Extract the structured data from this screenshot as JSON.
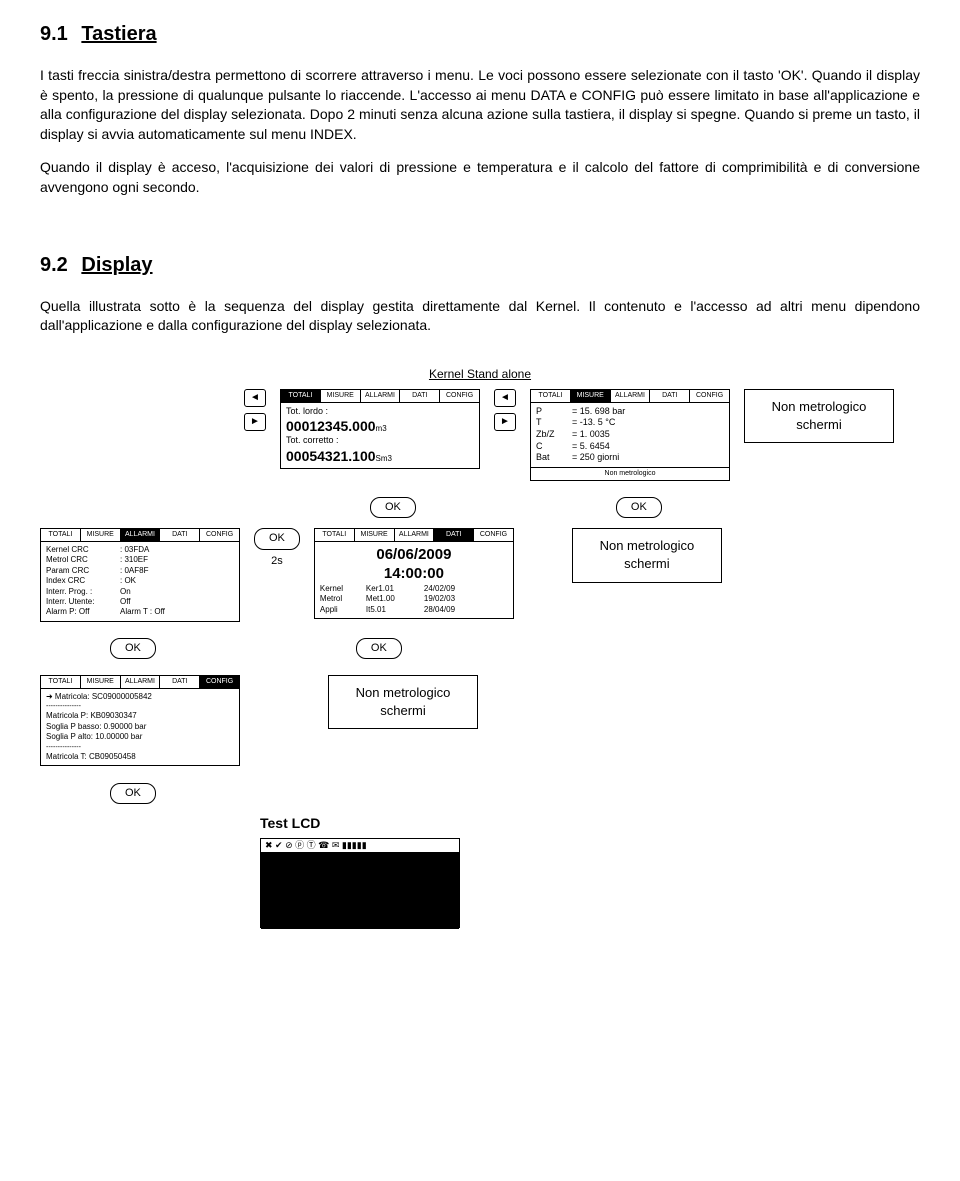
{
  "section1": {
    "num": "9.1",
    "title": "Tastiera",
    "p1": "I tasti freccia sinistra/destra permettono di scorrere attraverso i menu. Le voci possono essere selezionate con il tasto 'OK'. Quando il display è spento, la pressione di qualunque pulsante lo riaccende. L'accesso ai menu DATA e CONFIG può essere limitato in base all'applicazione e alla configurazione del display selezionata. Dopo 2 minuti senza alcuna azione sulla tastiera, il display si spegne. Quando si preme un tasto, il display si avvia automaticamente sul menu INDEX.",
    "p2": "Quando il display è acceso, l'acquisizione dei valori di pressione e temperatura e il calcolo del fattore di comprimibilità e di conversione avvengono ogni secondo."
  },
  "section2": {
    "num": "9.2",
    "title": "Display",
    "p1": "Quella illustrata sotto è la sequenza del display gestita direttamente dal Kernel. Il contenuto e l'accesso ad altri menu dipendono dall'applicazione e dalla configurazione del display selezionata."
  },
  "diagram": {
    "title": "Kernel Stand alone",
    "tabs": [
      "TOTALI",
      "MISURE",
      "ALLARMI",
      "DATI",
      "CONFIG"
    ],
    "ok": "OK",
    "twoS": "2s",
    "nonMetro": "Non metrologico\nschermi",
    "screen1": {
      "l1": "Tot. lordo :",
      "v1": "00012345.000",
      "u1": "m3",
      "l2": "Tot. corretto :",
      "v2": "00054321.100",
      "u2": "Sm3"
    },
    "screen2": {
      "rows": [
        [
          "P",
          "= 15. 698 bar"
        ],
        [
          "T",
          "= -13. 5 °C"
        ],
        [
          "Zb/Z",
          "= 1. 0035"
        ],
        [
          "C",
          "= 5. 6454"
        ],
        [
          "Bat",
          "= 250 giorni"
        ]
      ],
      "footer": "Non metrologico"
    },
    "screen3": {
      "rows": [
        [
          "Kernel CRC",
          ": 03FDA"
        ],
        [
          "Metrol CRC",
          ": 310EF"
        ],
        [
          "Param CRC",
          ": 0AF8F"
        ],
        [
          "Index CRC",
          ": OK"
        ],
        [
          "Interr. Prog. :",
          "On"
        ],
        [
          "Interr. Utente:",
          "Off"
        ],
        [
          "Alarm P: Off",
          "Alarm T : Off"
        ]
      ]
    },
    "screen4": {
      "date": "06/06/2009",
      "time": "14:00:00",
      "rows": [
        [
          "Kernel",
          "Ker1.01",
          "24/02/09"
        ],
        [
          "Metrol",
          "Met1.00",
          "19/02/03"
        ],
        [
          "Appli",
          "It5.01",
          "28/04/09"
        ]
      ]
    },
    "screen5": {
      "rows": [
        "Matricola: SC09000005842",
        "Matricola P: KB09030347",
        "Soglia P basso: 0.90000 bar",
        "Soglia P alto: 10.00000 bar",
        "Matricola T: CB09050458"
      ]
    },
    "testlcd": {
      "label": "Test LCD",
      "icons": "✖ ✔ ⊘ ⓟ Ⓣ ☎ ✉ ▮▮▮▮▮"
    }
  }
}
